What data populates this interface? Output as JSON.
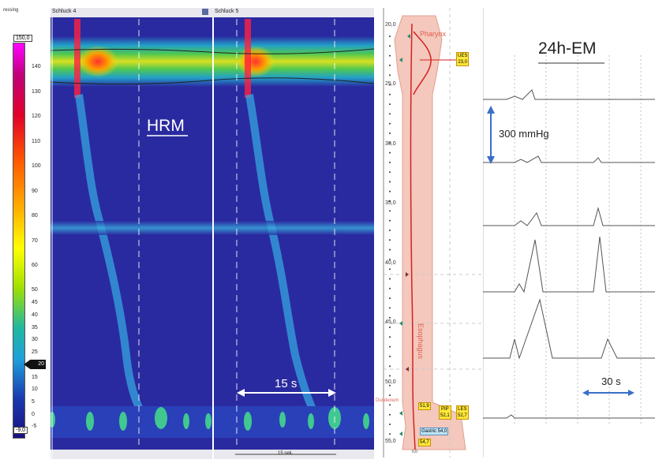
{
  "scale": {
    "title": "ressing",
    "max_box": "150,0",
    "min_box": "-9,0",
    "pointer_value": "20",
    "ticks": [
      "140",
      "130",
      "120",
      "110",
      "100",
      "90",
      "80",
      "70",
      "60",
      "50",
      "45",
      "40",
      "35",
      "30",
      "25",
      "20",
      "15",
      "10",
      "5",
      "0",
      "-5"
    ],
    "tick_values": [
      140,
      130,
      120,
      110,
      100,
      90,
      80,
      70,
      60,
      50,
      45,
      40,
      35,
      30,
      25,
      20,
      15,
      10,
      5,
      0,
      -5
    ]
  },
  "hrm": {
    "swallow_left": "Schluck 4",
    "swallow_right": "Schluck 5",
    "label": "HRM",
    "timebar_label": "15 s",
    "bottom_scale": "15 sek."
  },
  "probe": {
    "y_ticks": [
      "20,0",
      "25,0",
      "30,0",
      "35,0",
      "40,0",
      "45,0",
      "50,0",
      "55,0"
    ],
    "pharynx": "Pharynx",
    "esophagus": "Esophagus",
    "duodenum": "Duodenum",
    "ues_name": "UES",
    "ues_value": "23,0",
    "val_519": "51,9",
    "pip_name": "PIP",
    "pip_value": "52,1",
    "les_name": "LES",
    "les_value": "52,7",
    "gastric_name": "Gastric",
    "gastric_value": "54,0",
    "val_547": "54,7",
    "x_zero": "0,0"
  },
  "em": {
    "title": "24h-EM",
    "amp_label": "300 mmHg",
    "time_label": "30 s"
  },
  "colors": {
    "background": "#2a2aa0",
    "accent_arrow": "#3a6ec8",
    "probe_body": "#f4c8bc",
    "probe_line": "#d62020"
  },
  "chart_data": [
    {
      "type": "heatmap",
      "title": "",
      "xlabel": "",
      "ylabel": "",
      "colorbar_range": [
        -9,
        150
      ],
      "ylim": [
        20,
        55
      ],
      "annotations": [
        "HRM",
        "15 s"
      ]
    },
    {
      "type": "line",
      "title": "24h-EM",
      "xlabel": "",
      "ylabel": "",
      "series_count": 6,
      "annotations": [
        "300 mmHg",
        "30 s"
      ]
    }
  ]
}
